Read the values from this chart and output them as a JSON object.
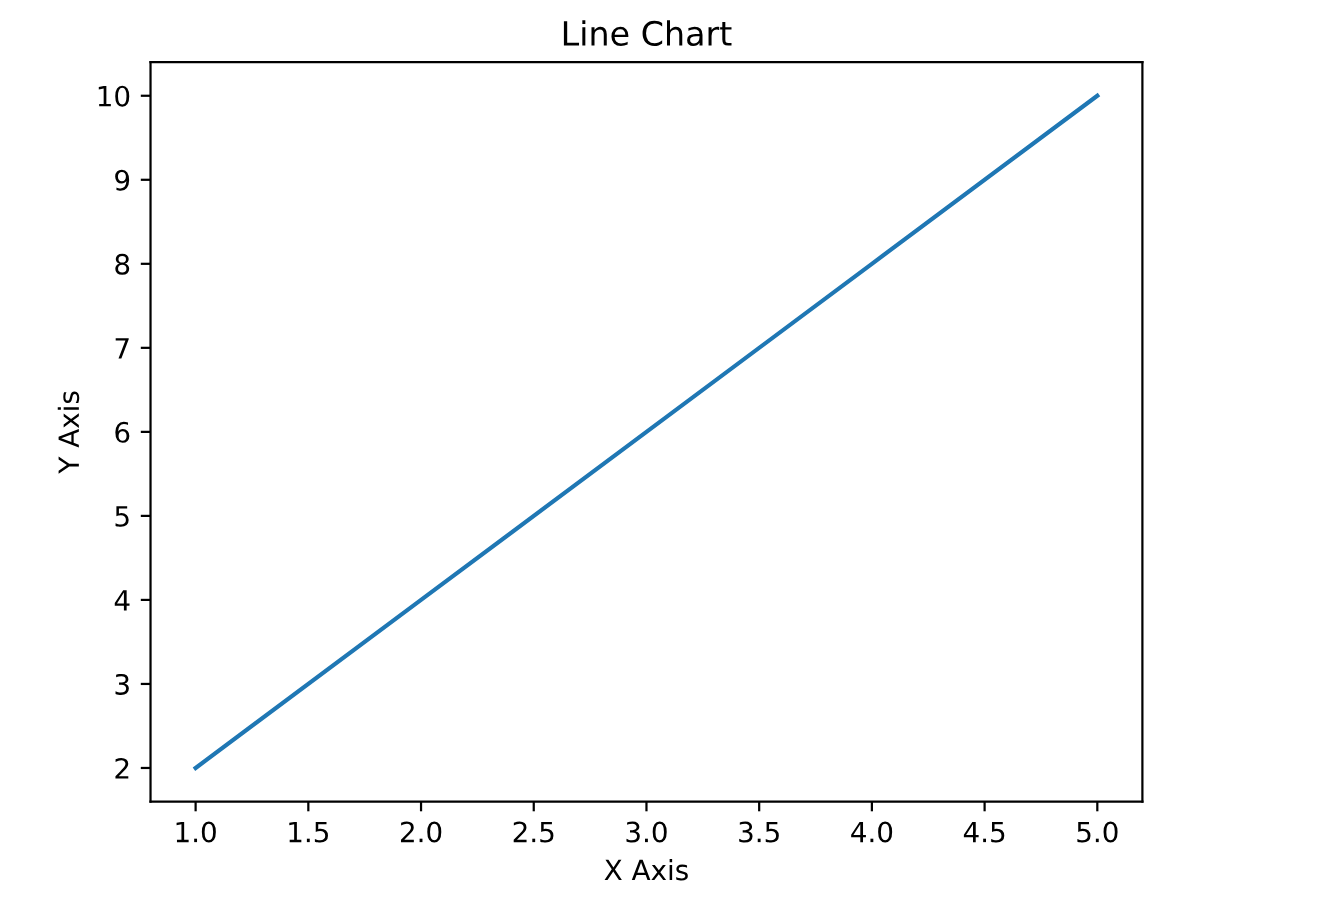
{
  "chart_data": {
    "type": "line",
    "title": "Line Chart",
    "xlabel": "X Axis",
    "ylabel": "Y Axis",
    "x": [
      1,
      2,
      3,
      4,
      5
    ],
    "series": [
      {
        "color": "#1f77b4",
        "values": [
          2,
          4,
          6,
          8,
          10
        ]
      }
    ],
    "xlim": [
      0.8,
      5.2
    ],
    "ylim": [
      1.6,
      10.4
    ],
    "xticks": [
      {
        "value": 1,
        "label": "1.0"
      },
      {
        "value": 1.5,
        "label": "1.5"
      },
      {
        "value": 2,
        "label": "2.0"
      },
      {
        "value": 2.5,
        "label": "2.5"
      },
      {
        "value": 3,
        "label": "3.0"
      },
      {
        "value": 3.5,
        "label": "3.5"
      },
      {
        "value": 4,
        "label": "4.0"
      },
      {
        "value": 4.5,
        "label": "4.5"
      },
      {
        "value": 5,
        "label": "5.0"
      }
    ],
    "yticks": [
      2,
      3,
      4,
      5,
      6,
      7,
      8,
      9,
      10
    ],
    "grid": false,
    "marker": "none",
    "line_style": "solid"
  }
}
